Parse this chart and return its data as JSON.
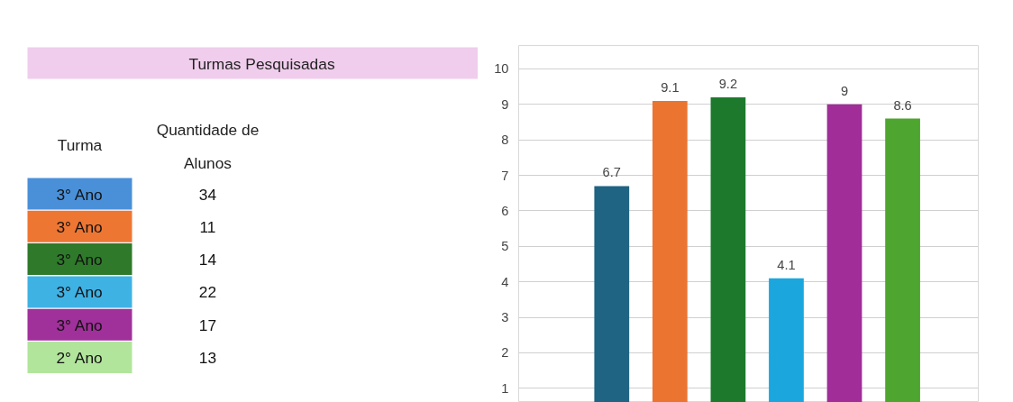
{
  "chart_data": [
    {
      "type": "other",
      "title": "Turmas Pesquisadas",
      "annotations": [
        "Turma",
        "Quantidade de Alunos"
      ],
      "categories": [
        "3° Ano",
        "3° Ano",
        "3° Ano",
        "3° Ano",
        "3° Ano",
        "2° Ano"
      ],
      "values": [
        34,
        11,
        14,
        22,
        17,
        13
      ],
      "colors": [
        "#4a90d9",
        "#ee7633",
        "#2e7a2a",
        "#3fb2e4",
        "#a0309a",
        "#b2e59c"
      ],
      "data_labels": true
    },
    {
      "type": "bar",
      "categories": [
        null,
        null,
        null,
        null,
        null,
        null
      ],
      "values": [
        6.7,
        9.1,
        9.2,
        4.1,
        9,
        8.6
      ],
      "colors": [
        "#1f6483",
        "#ec7431",
        "#1d7a2d",
        "#1ba6de",
        "#a02d98",
        "#4ea52f"
      ],
      "ylim": [
        0.6,
        10.66
      ],
      "yticks": [
        1,
        2,
        3,
        4,
        5,
        6,
        7,
        8,
        9,
        10
      ],
      "grid": "y",
      "data_labels": true
    }
  ]
}
